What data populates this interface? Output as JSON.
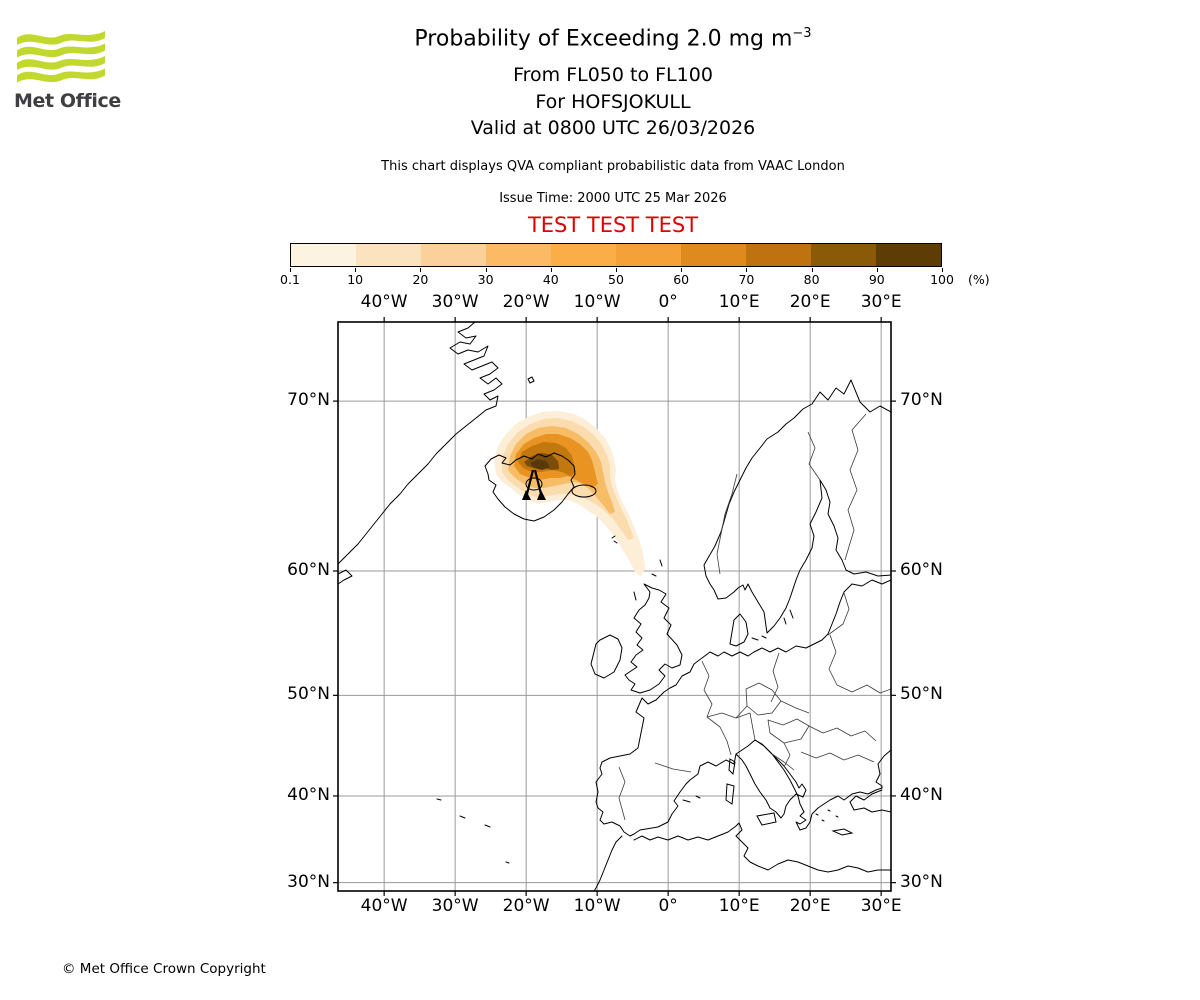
{
  "logo": {
    "brand": "Met Office",
    "wave_color": "#c3d82e",
    "text_color": "#3f3f41"
  },
  "header": {
    "title_main": "Probability of Exceeding 2.0 mg m",
    "title_exponent": "−3",
    "subtitle_layer": "From FL050 to FL100",
    "subtitle_volcano": "For HOFSJOKULL",
    "subtitle_valid": "Valid at 0800 UTC 26/03/2026",
    "qva_note": "This chart displays QVA compliant probabilistic data from VAAC London",
    "issue_time": "Issue Time: 2000 UTC 25 Mar 2026",
    "test_banner": "TEST TEST TEST",
    "test_color": "#e00000"
  },
  "colorbar": {
    "tick_labels": [
      "0.1",
      "10",
      "20",
      "30",
      "40",
      "50",
      "60",
      "70",
      "80",
      "90",
      "100"
    ],
    "unit": "(%)",
    "colors": [
      "#fdf3e1",
      "#fbe3c0",
      "#fbd09b",
      "#fbba63",
      "#fbae47",
      "#f4a139",
      "#df8a1e",
      "#bf7310",
      "#8b5a09",
      "#5e3c06"
    ]
  },
  "map": {
    "top_labels": [
      "40°W",
      "30°W",
      "20°W",
      "10°W",
      "0°",
      "10°E",
      "20°E",
      "30°E"
    ],
    "bottom_labels": [
      "40°W",
      "30°W",
      "20°W",
      "10°W",
      "0°",
      "10°E",
      "20°E",
      "30°E"
    ],
    "left_labels": [
      "70°N",
      "60°N",
      "50°N",
      "40°N",
      "30°N"
    ],
    "right_labels": [
      "70°N",
      "60°N",
      "50°N",
      "40°N",
      "30°N"
    ],
    "grid_color": "#9a9a9a",
    "coast_color": "#000000",
    "border_color": "#3a3a3a"
  },
  "chart_data": {
    "type": "probability_contour_map",
    "title": "Probability of Exceeding 2.0 mg m-3",
    "threshold": "2.0 mg m-3",
    "layer": "FL050 to FL100",
    "volcano": {
      "name": "HOFSJOKULL",
      "lon": -18.9,
      "lat": 64.8
    },
    "valid_time": "0800 UTC 26/03/2026",
    "issue_time": "2000 UTC 25 Mar 2026",
    "probability_bins_percent": [
      0.1,
      10,
      20,
      30,
      40,
      50,
      60,
      70,
      80,
      90,
      100
    ],
    "bin_colors": [
      "#fdf3e1",
      "#fbe3c0",
      "#fbd09b",
      "#fbba63",
      "#fbae47",
      "#f4a139",
      "#df8a1e",
      "#bf7310",
      "#8b5a09",
      "#5e3c06"
    ],
    "projection": {
      "type": "mercator",
      "lon_range": [
        -46.5,
        31.4
      ],
      "lat_range": [
        29.4,
        73.5
      ]
    },
    "graticule": {
      "lon_ticks_deg": [
        -40,
        -30,
        -20,
        -10,
        0,
        10,
        20,
        30
      ],
      "lat_ticks_deg": [
        70,
        60,
        50,
        40,
        30
      ]
    },
    "plume_levels": [
      {
        "min_percent": 0.1,
        "color": "#fdeed8",
        "points": [
          [
            158,
            152
          ],
          [
            156,
            138
          ],
          [
            160,
            124
          ],
          [
            168,
            112
          ],
          [
            178,
            102
          ],
          [
            190,
            95
          ],
          [
            204,
            90
          ],
          [
            220,
            89
          ],
          [
            236,
            92
          ],
          [
            248,
            98
          ],
          [
            258,
            106
          ],
          [
            267,
            116
          ],
          [
            273,
            127
          ],
          [
            276,
            137
          ],
          [
            278,
            147
          ],
          [
            277,
            157
          ],
          [
            279,
            167
          ],
          [
            283,
            177
          ],
          [
            288,
            187
          ],
          [
            293,
            197
          ],
          [
            297,
            207
          ],
          [
            301,
            217
          ],
          [
            304,
            227
          ],
          [
            306,
            237
          ],
          [
            307,
            247
          ],
          [
            303,
            254
          ],
          [
            297,
            250
          ],
          [
            292,
            240
          ],
          [
            286,
            230
          ],
          [
            280,
            220
          ],
          [
            273,
            210
          ],
          [
            266,
            202
          ],
          [
            258,
            194
          ],
          [
            249,
            188
          ],
          [
            240,
            182
          ],
          [
            230,
            178
          ],
          [
            220,
            178
          ],
          [
            210,
            180
          ],
          [
            200,
            182
          ],
          [
            190,
            178
          ],
          [
            180,
            172
          ],
          [
            170,
            164
          ],
          [
            162,
            158
          ]
        ]
      },
      {
        "min_percent": 10,
        "color": "#fbdcae",
        "points": [
          [
            164,
            150
          ],
          [
            164,
            136
          ],
          [
            170,
            122
          ],
          [
            180,
            110
          ],
          [
            192,
            102
          ],
          [
            206,
            97
          ],
          [
            220,
            96
          ],
          [
            234,
            99
          ],
          [
            246,
            105
          ],
          [
            256,
            113
          ],
          [
            264,
            123
          ],
          [
            269,
            133
          ],
          [
            272,
            143
          ],
          [
            272,
            153
          ],
          [
            274,
            164
          ],
          [
            278,
            175
          ],
          [
            283,
            186
          ],
          [
            288,
            196
          ],
          [
            292,
            206
          ],
          [
            296,
            216
          ],
          [
            290,
            218
          ],
          [
            283,
            208
          ],
          [
            276,
            198
          ],
          [
            268,
            190
          ],
          [
            260,
            184
          ],
          [
            250,
            178
          ],
          [
            240,
            174
          ],
          [
            230,
            172
          ],
          [
            220,
            172
          ],
          [
            210,
            174
          ],
          [
            200,
            176
          ],
          [
            190,
            172
          ],
          [
            180,
            166
          ],
          [
            170,
            158
          ]
        ]
      },
      {
        "min_percent": 30,
        "color": "#f6bc66",
        "points": [
          [
            170,
            148
          ],
          [
            172,
            134
          ],
          [
            178,
            122
          ],
          [
            188,
            112
          ],
          [
            200,
            106
          ],
          [
            214,
            104
          ],
          [
            228,
            106
          ],
          [
            240,
            112
          ],
          [
            250,
            120
          ],
          [
            258,
            130
          ],
          [
            263,
            140
          ],
          [
            265,
            150
          ],
          [
            267,
            160
          ],
          [
            270,
            170
          ],
          [
            274,
            180
          ],
          [
            277,
            190
          ],
          [
            272,
            192
          ],
          [
            266,
            184
          ],
          [
            259,
            176
          ],
          [
            252,
            168
          ],
          [
            244,
            162
          ],
          [
            236,
            160
          ],
          [
            226,
            162
          ],
          [
            216,
            164
          ],
          [
            206,
            166
          ],
          [
            196,
            166
          ],
          [
            186,
            162
          ],
          [
            177,
            156
          ]
        ]
      },
      {
        "min_percent": 50,
        "color": "#e99322",
        "points": [
          [
            176,
            144
          ],
          [
            178,
            132
          ],
          [
            186,
            122
          ],
          [
            196,
            116
          ],
          [
            208,
            112
          ],
          [
            220,
            112
          ],
          [
            232,
            116
          ],
          [
            242,
            122
          ],
          [
            250,
            130
          ],
          [
            254,
            138
          ],
          [
            256,
            146
          ],
          [
            258,
            154
          ],
          [
            260,
            162
          ],
          [
            254,
            166
          ],
          [
            246,
            162
          ],
          [
            238,
            158
          ],
          [
            230,
            154
          ],
          [
            222,
            156
          ],
          [
            212,
            156
          ],
          [
            202,
            158
          ],
          [
            192,
            156
          ],
          [
            182,
            152
          ]
        ]
      },
      {
        "min_percent": 70,
        "color": "#c2770f",
        "points": [
          [
            180,
            140
          ],
          [
            184,
            130
          ],
          [
            194,
            124
          ],
          [
            206,
            120
          ],
          [
            218,
            121
          ],
          [
            228,
            126
          ],
          [
            234,
            134
          ],
          [
            236,
            142
          ],
          [
            238,
            150
          ],
          [
            232,
            154
          ],
          [
            224,
            150
          ],
          [
            214,
            148
          ],
          [
            204,
            150
          ],
          [
            194,
            150
          ],
          [
            185,
            146
          ]
        ]
      },
      {
        "min_percent": 80,
        "color": "#7a4d08",
        "points": [
          [
            186,
            140
          ],
          [
            194,
            134
          ],
          [
            204,
            131
          ],
          [
            214,
            133
          ],
          [
            220,
            139
          ],
          [
            221,
            147
          ],
          [
            214,
            148
          ],
          [
            205,
            146
          ],
          [
            196,
            146
          ],
          [
            189,
            144
          ]
        ]
      },
      {
        "min_percent": 90,
        "color": "#59390a",
        "points": [
          [
            192,
            141
          ],
          [
            200,
            137
          ],
          [
            208,
            139
          ],
          [
            212,
            145
          ],
          [
            204,
            148
          ],
          [
            196,
            146
          ]
        ]
      }
    ]
  },
  "footer": {
    "copyright": "© Met Office Crown Copyright"
  }
}
